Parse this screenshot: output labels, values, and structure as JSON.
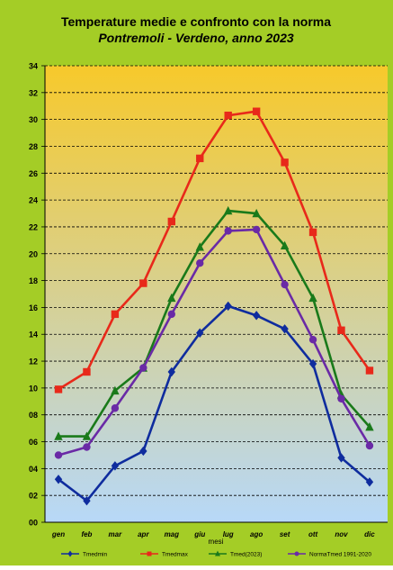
{
  "chart_data": {
    "type": "line",
    "title": "Temperature medie e confronto con la norma",
    "subtitle": "Pontremoli - Verdeno, anno 2023",
    "xlabel": "mesi",
    "ylabel": "",
    "categories": [
      "gen",
      "feb",
      "mar",
      "apr",
      "mag",
      "giu",
      "lug",
      "ago",
      "set",
      "ott",
      "nov",
      "dic"
    ],
    "ylim": [
      0,
      34
    ],
    "yticks": [
      "00",
      "02",
      "04",
      "06",
      "08",
      "10",
      "12",
      "14",
      "16",
      "18",
      "20",
      "22",
      "24",
      "26",
      "28",
      "30",
      "32",
      "34"
    ],
    "grid": true,
    "legend": "bottom",
    "series": [
      {
        "name": "Tmedmin",
        "color": "#0f2c9e",
        "marker": "diamond",
        "values": [
          3.2,
          1.6,
          4.2,
          5.3,
          11.2,
          14.1,
          16.1,
          15.4,
          14.4,
          11.8,
          4.8,
          3.0
        ]
      },
      {
        "name": "Tmedmax",
        "color": "#e8291a",
        "marker": "square",
        "values": [
          9.9,
          11.2,
          15.5,
          17.8,
          22.4,
          27.1,
          30.3,
          30.6,
          26.8,
          21.6,
          14.3,
          11.3
        ]
      },
      {
        "name": "Tmed(2023)",
        "color": "#1a7a1a",
        "marker": "triangle",
        "values": [
          6.4,
          6.4,
          9.8,
          11.5,
          16.7,
          20.5,
          23.2,
          23.0,
          20.6,
          16.7,
          9.5,
          7.1
        ]
      },
      {
        "name": "NormaTmed 1991-2020",
        "color": "#6a2aa6",
        "marker": "circle",
        "values": [
          5.0,
          5.6,
          8.5,
          11.5,
          15.5,
          19.3,
          21.7,
          21.8,
          17.7,
          13.6,
          9.2,
          5.7
        ]
      }
    ],
    "colors": {
      "frame": "#a4cd26",
      "plot_top": "#f7c92b",
      "plot_bottom": "#b7d8f8"
    }
  }
}
